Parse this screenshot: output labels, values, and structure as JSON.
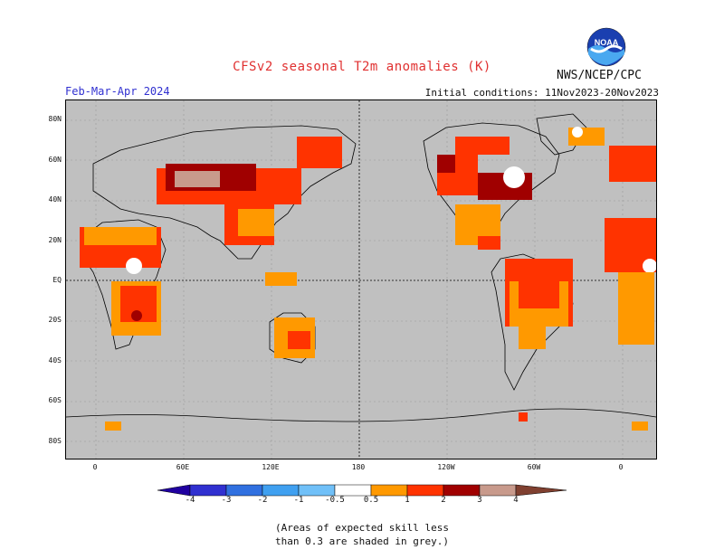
{
  "header": {
    "title": "CFSv2 seasonal T2m anomalies (K)",
    "agency": "NWS/NCEP/CPC",
    "period": "Feb-Mar-Apr 2024",
    "initial_conditions": "Initial conditions: 11Nov2023-20Nov2023"
  },
  "logo": {
    "text": "NOAA",
    "icon": "noaa-logo"
  },
  "map": {
    "lat_labels": [
      "80N",
      "60N",
      "40N",
      "20N",
      "EQ",
      "20S",
      "40S",
      "60S",
      "80S"
    ],
    "lon_labels": [
      "0",
      "60E",
      "120E",
      "180",
      "120W",
      "60W",
      "0"
    ],
    "colors": {
      "ocean": "#c0c0c0",
      "land_skill": "#ffffff",
      "anom_05_1": "#ff9900",
      "anom_1_2": "#ff3300",
      "anom_2_3": "#a00000",
      "anom_3_4": "#c89a8c"
    }
  },
  "colorbar": {
    "tick_labels": [
      "-4",
      "-3",
      "-2",
      "-1",
      "-0.5",
      "0.5",
      "1",
      "2",
      "3",
      "4"
    ],
    "colors": [
      "#2000a0",
      "#3030d0",
      "#3070e0",
      "#40a0f0",
      "#70c0f8",
      "#ffffff",
      "#ff9900",
      "#ff3300",
      "#a00000",
      "#c89a8c",
      "#804030"
    ]
  },
  "note": {
    "line1": "(Areas of expected skill less",
    "line2": "than 0.3 are shaded in grey.)"
  }
}
